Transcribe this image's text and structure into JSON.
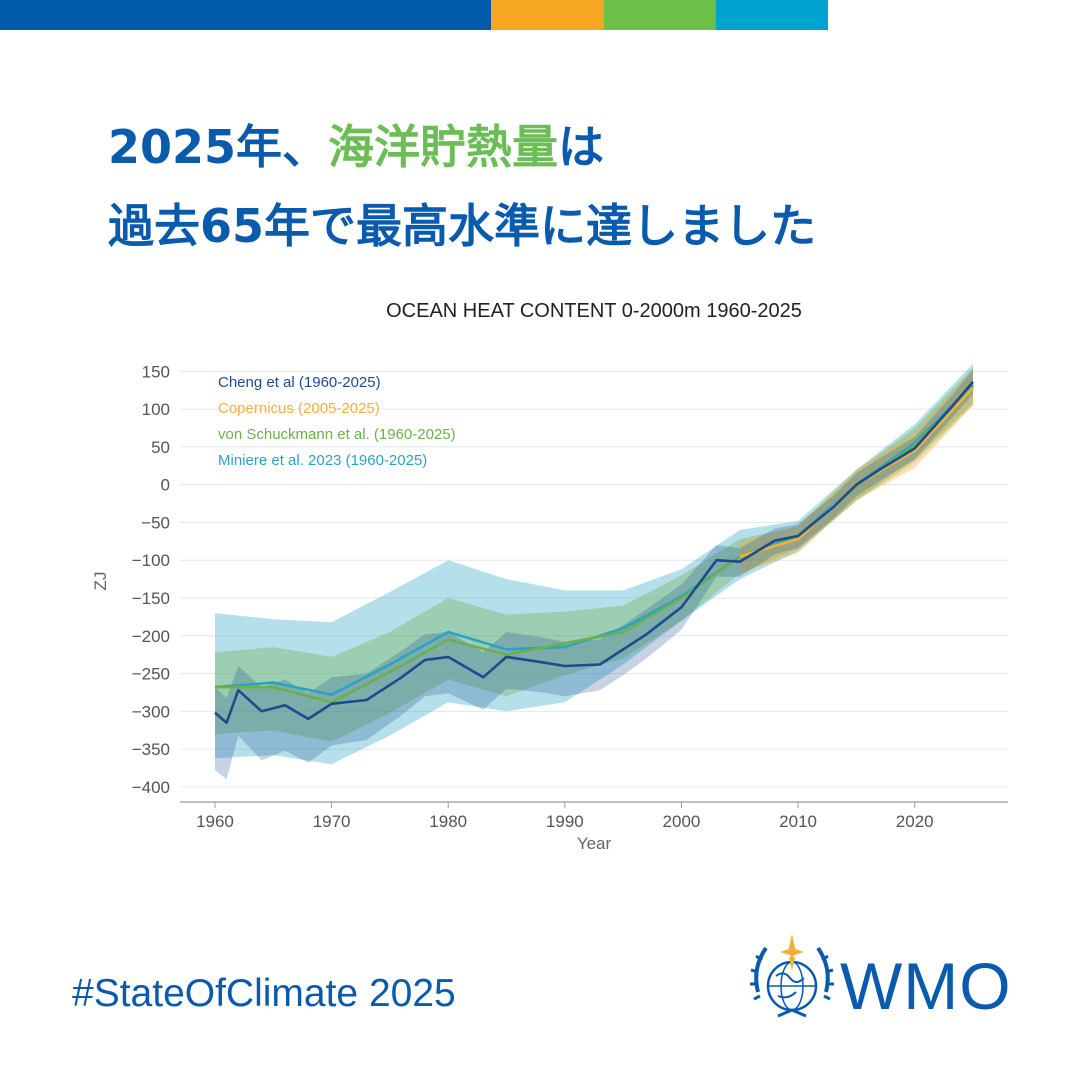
{
  "top_bar": {
    "segments": [
      {
        "color": "#005bac",
        "width": 491
      },
      {
        "color": "#f5a623",
        "width": 113
      },
      {
        "color": "#6cc04a",
        "width": 112
      },
      {
        "color": "#00a3d0",
        "width": 112
      }
    ]
  },
  "headline": {
    "line1_pre": "2025年、",
    "line1_highlight": "海洋貯熱量",
    "line1_post": "は",
    "line2": "過去65年で最高水準に達しました",
    "color": "#0a5aad",
    "highlight_color": "#6dbd57"
  },
  "chart_data": {
    "type": "line",
    "title": "OCEAN HEAT CONTENT 0-2000m 1960-2025",
    "xlabel": "Year",
    "ylabel": "ZJ",
    "xlim": [
      1957,
      2028
    ],
    "ylim": [
      -420,
      165
    ],
    "x_ticks": [
      1960,
      1970,
      1980,
      1990,
      2000,
      2010,
      2020
    ],
    "y_ticks": [
      150,
      100,
      50,
      0,
      -50,
      -100,
      -150,
      -200,
      -250,
      -300,
      -350,
      -400
    ],
    "grid": "horizontal",
    "legend_position": "top-left",
    "series": [
      {
        "name": "Miniere et al. 2023 (1960-2025)",
        "color": "#2aa3c4",
        "band_opacity": 0.35,
        "x": [
          1960,
          1965,
          1970,
          1975,
          1980,
          1985,
          1990,
          1995,
          2000,
          2005,
          2010,
          2015,
          2020,
          2025
        ],
        "values": [
          -268,
          -262,
          -278,
          -238,
          -195,
          -218,
          -215,
          -190,
          -148,
          -95,
          -68,
          0,
          55,
          132
        ],
        "upper": [
          -170,
          -178,
          -182,
          -142,
          -100,
          -125,
          -140,
          -140,
          -112,
          -60,
          -48,
          20,
          80,
          160
        ],
        "lower": [
          -362,
          -358,
          -370,
          -332,
          -288,
          -300,
          -288,
          -238,
          -180,
          -125,
          -88,
          -20,
          35,
          108
        ]
      },
      {
        "name": "von Schuckmann et al. (1960-2025)",
        "color": "#6ab04c",
        "band_opacity": 0.35,
        "x": [
          1960,
          1965,
          1970,
          1975,
          1980,
          1985,
          1990,
          1995,
          2000,
          2005,
          2010,
          2015,
          2020,
          2025
        ],
        "values": [
          -268,
          -268,
          -288,
          -248,
          -205,
          -225,
          -210,
          -195,
          -150,
          -95,
          -70,
          -2,
          52,
          130
        ],
        "upper": [
          -222,
          -215,
          -228,
          -195,
          -150,
          -172,
          -168,
          -160,
          -120,
          -72,
          -55,
          18,
          75,
          155
        ],
        "lower": [
          -330,
          -325,
          -340,
          -302,
          -258,
          -280,
          -252,
          -230,
          -180,
          -118,
          -85,
          -22,
          30,
          105
        ]
      },
      {
        "name": "Copernicus (2005-2025)",
        "color": "#f0b03c",
        "band_opacity": 0.4,
        "x": [
          2005,
          2010,
          2015,
          2020,
          2025
        ],
        "values": [
          -95,
          -72,
          0,
          45,
          128
        ],
        "upper": [
          -75,
          -55,
          20,
          70,
          152
        ],
        "lower": [
          -118,
          -90,
          -20,
          22,
          105
        ]
      },
      {
        "name": "Cheng et al (1960-2025)",
        "color": "#1e4b8f",
        "band_opacity": 0.25,
        "x": [
          1960,
          1961,
          1962,
          1964,
          1966,
          1968,
          1970,
          1973,
          1976,
          1978,
          1980,
          1983,
          1985,
          1988,
          1990,
          1993,
          1995,
          1997,
          2000,
          2003,
          2005,
          2008,
          2010,
          2013,
          2015,
          2017,
          2020,
          2023,
          2025
        ],
        "values": [
          -302,
          -315,
          -272,
          -300,
          -292,
          -310,
          -290,
          -285,
          -255,
          -232,
          -228,
          -255,
          -228,
          -235,
          -240,
          -238,
          -218,
          -198,
          -162,
          -100,
          -102,
          -74,
          -68,
          -30,
          0,
          20,
          48,
          100,
          136
        ],
        "upper": [
          -268,
          -282,
          -240,
          -268,
          -258,
          -276,
          -255,
          -250,
          -220,
          -198,
          -195,
          -222,
          -195,
          -202,
          -208,
          -205,
          -186,
          -165,
          -132,
          -80,
          -84,
          -58,
          -52,
          -15,
          15,
          35,
          63,
          115,
          152
        ],
        "lower": [
          -378,
          -390,
          -332,
          -365,
          -352,
          -368,
          -345,
          -338,
          -305,
          -280,
          -276,
          -298,
          -270,
          -275,
          -280,
          -272,
          -252,
          -230,
          -192,
          -122,
          -122,
          -92,
          -84,
          -45,
          -15,
          5,
          33,
          85,
          120
        ]
      }
    ]
  },
  "footer": {
    "hashtag": "#StateOfClimate 2025",
    "org": "WMO",
    "org_color": "#0a5aad"
  }
}
